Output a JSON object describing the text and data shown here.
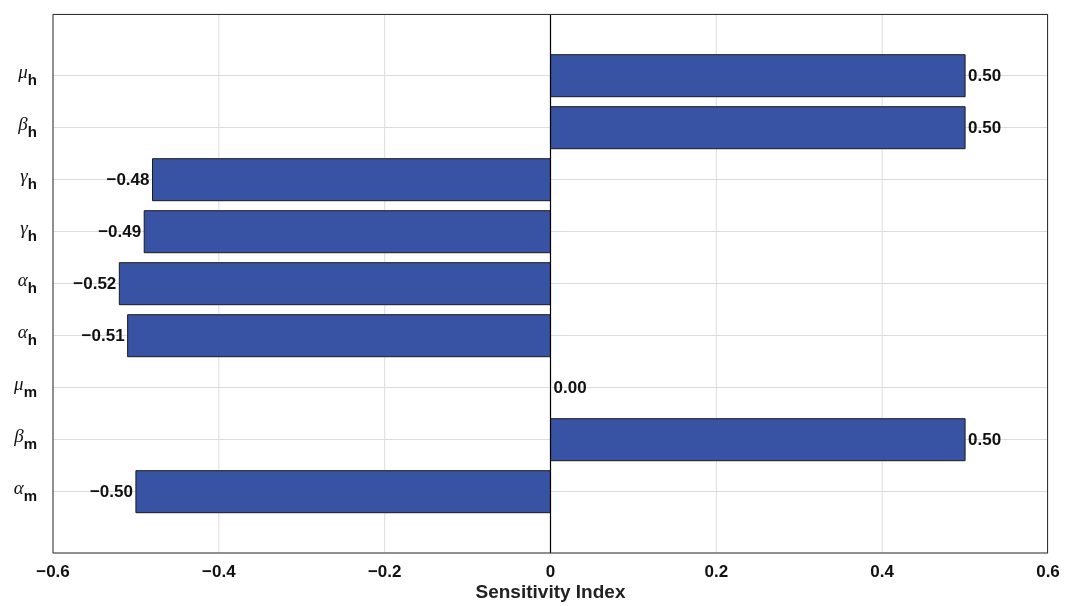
{
  "chart_data": {
    "type": "bar",
    "orientation": "horizontal",
    "xlabel": "Sensitivity Index",
    "categories": [
      "μ$_{h}$",
      "β$_{h}$",
      "γ$_{h}$",
      "γ$_{h}$",
      "α$_{h}$",
      "α$_{h}$",
      "μ$_{m}$",
      "β$_{m}$",
      "α$_{m}$"
    ],
    "values": [
      0.5,
      0.5,
      -0.48,
      -0.49,
      -0.52,
      -0.51,
      0,
      0.5,
      -0.5
    ],
    "value_labels": [
      "0.50",
      "0.50",
      "−0.48",
      "−0.49",
      "−0.52",
      "−0.51",
      "0.00",
      "0.50",
      "−0.50"
    ],
    "color": "#3953a4",
    "xlim": [
      -0.6,
      0.6
    ],
    "xticks": [
      {
        "value": -0.6,
        "label": "−0.6"
      },
      {
        "value": -0.4,
        "label": "−0.4"
      },
      {
        "value": -0.2,
        "label": "−0.2"
      },
      0,
      0.2,
      0.4,
      0.6
    ],
    "ref_lines": [
      {
        "axis": "x",
        "value": 0,
        "color": "#000000"
      }
    ],
    "grid": true
  }
}
